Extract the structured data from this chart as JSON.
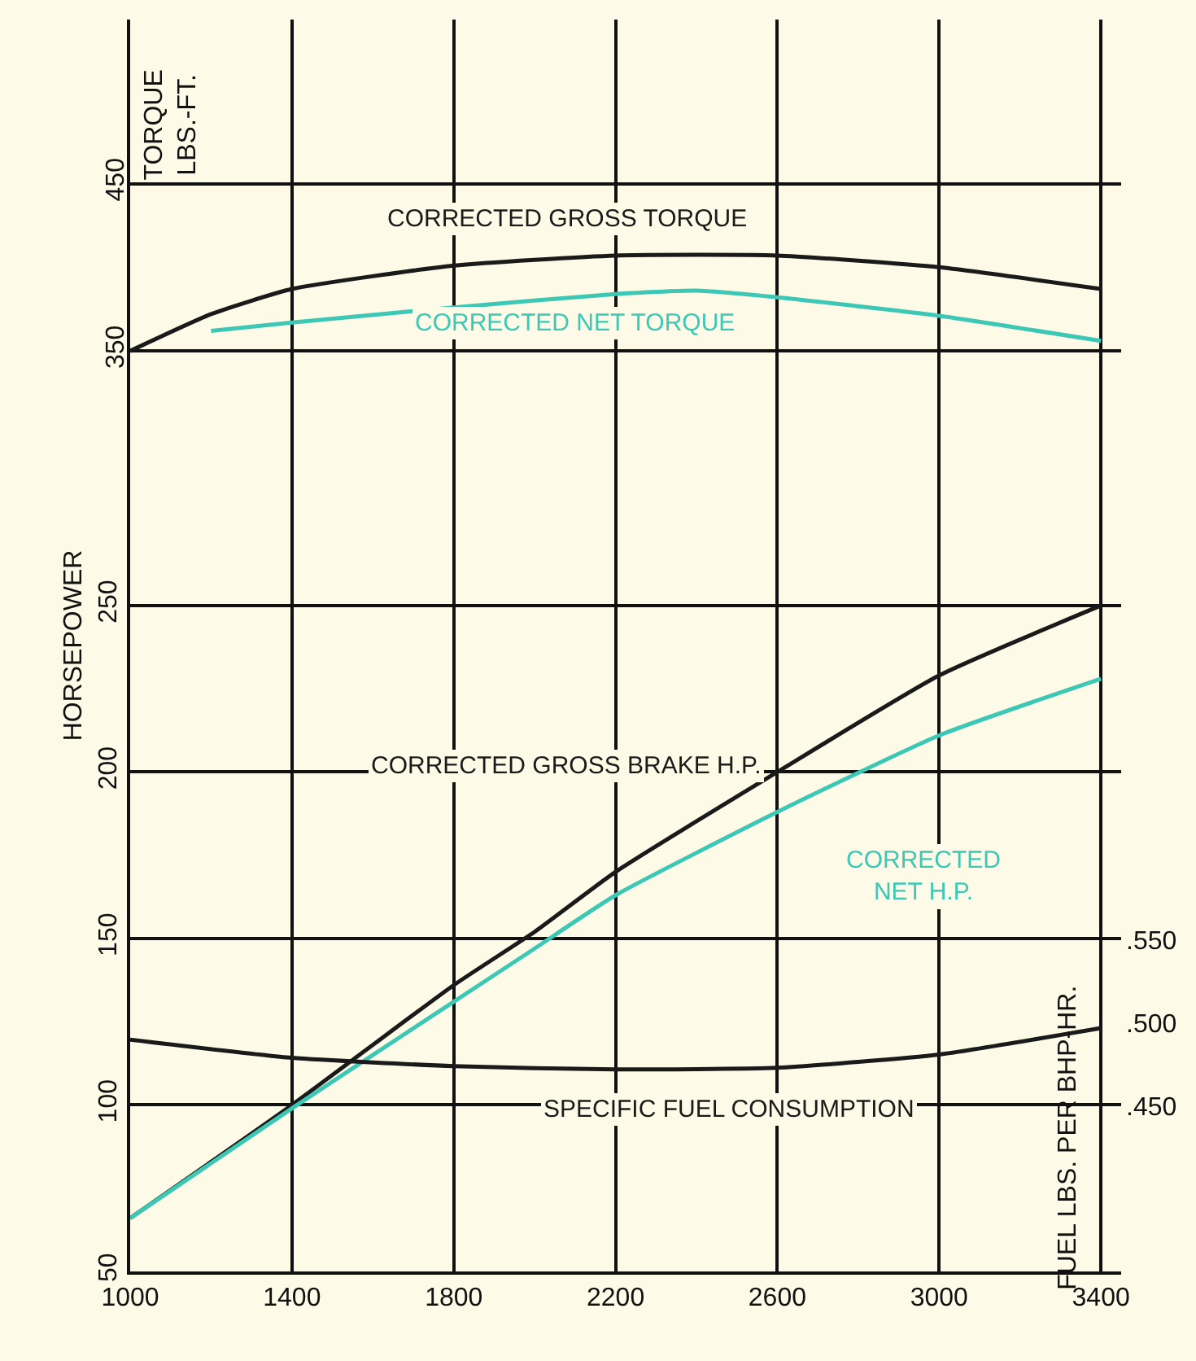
{
  "chart_data": {
    "type": "line",
    "xlim": [
      1000,
      3450
    ],
    "xticks": [
      1000,
      1400,
      1800,
      2200,
      2600,
      3000,
      3400
    ],
    "ylim": [
      50,
      426
    ],
    "yticks": [
      50,
      100,
      150,
      200,
      250
    ],
    "ylabel": "HORSEPOWER",
    "y2lim": [
      -200,
      548
    ],
    "y2ticks": [
      350,
      450
    ],
    "y2label": "TORQUE LBS.-FT.",
    "y3lim": [
      0.35,
      1.106
    ],
    "y3ticks": [
      {
        "value": 0.45,
        "label": ".450"
      },
      {
        "value": 0.5,
        "label": ".500"
      },
      {
        "value": 0.55,
        "label": ".550"
      }
    ],
    "y3label": "FUEL LBS. PER BHP-HR.",
    "grid": true,
    "legend": false,
    "marker": "none",
    "line_style": "solid",
    "series": [
      {
        "name": "CORRECTED GROSS TORQUE",
        "color": "#1a1a1a",
        "axis": "y2",
        "x": [
          1000,
          1200,
          1400,
          1800,
          2200,
          2600,
          3000,
          3400
        ],
        "values": [
          350,
          372,
          387,
          401,
          407,
          407,
          400,
          387
        ]
      },
      {
        "name": "CORRECTED NET TORQUE",
        "color": "#3cc8b4",
        "axis": "y2",
        "x": [
          1200,
          1400,
          1800,
          2200,
          2400,
          2600,
          3000,
          3400
        ],
        "values": [
          362,
          367,
          376,
          384,
          386,
          382,
          371,
          356
        ]
      },
      {
        "name": "CORRECTED GROSS BRAKE H.P.",
        "color": "#1a1a1a",
        "x": [
          1000,
          1400,
          1800,
          2000,
          2200,
          2600,
          3000,
          3400
        ],
        "values": [
          66,
          100,
          136,
          152,
          170,
          200,
          229,
          250
        ]
      },
      {
        "name": "CORRECTED NET H.P.",
        "color": "#3cc8b4",
        "x": [
          1000,
          1400,
          1800,
          2000,
          2200,
          2600,
          3000,
          3400
        ],
        "values": [
          66,
          99,
          131,
          147,
          163,
          188,
          211,
          228
        ]
      },
      {
        "name": "SPECIFIC FUEL CONSUMPTION",
        "color": "#1a1a1a",
        "axis": "y3",
        "x": [
          1000,
          1400,
          1800,
          2200,
          2600,
          3000,
          3400
        ],
        "values": [
          0.49,
          0.479,
          0.474,
          0.472,
          0.473,
          0.481,
          0.497
        ]
      }
    ]
  }
}
